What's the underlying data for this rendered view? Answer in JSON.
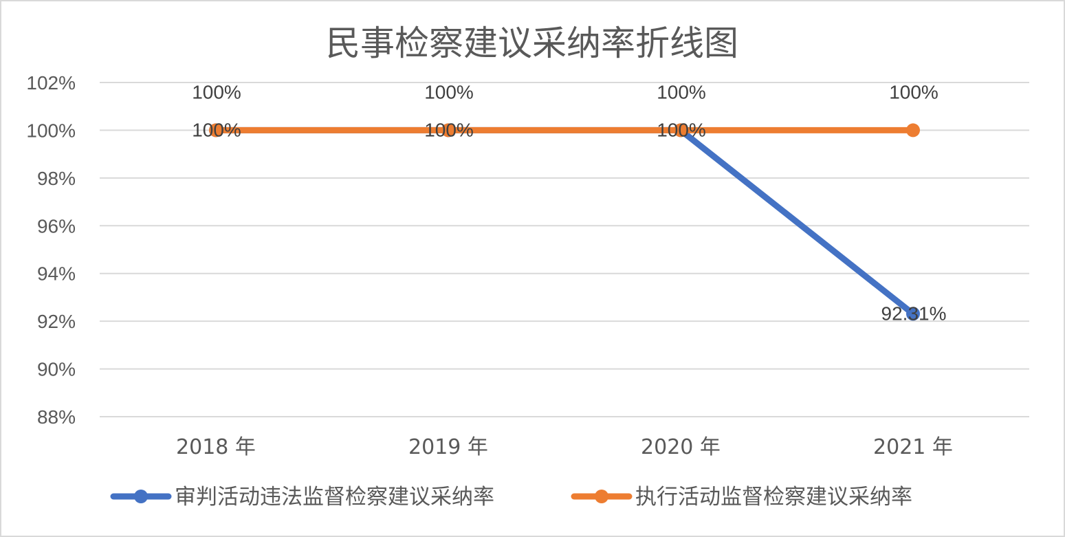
{
  "chart_data": {
    "type": "line",
    "title": "民事检察建议采纳率折线图",
    "categories": [
      "2018 年",
      "2019 年",
      "2020 年",
      "2021 年"
    ],
    "ylim": [
      88,
      102
    ],
    "yticks": [
      88,
      90,
      92,
      94,
      96,
      98,
      100,
      102
    ],
    "ytick_labels": [
      "88%",
      "90%",
      "92%",
      "94%",
      "96%",
      "98%",
      "100%",
      "102%"
    ],
    "y_unit": "%",
    "grid": true,
    "legend_position": "bottom",
    "series": [
      {
        "name": "审判活动违法监督检察建议采纳率",
        "values": [
          100,
          100,
          100,
          92.31
        ],
        "data_labels": [
          "100%",
          "100%",
          "100%",
          "92.31%"
        ],
        "color": "#4472c4"
      },
      {
        "name": "执行活动监督检察建议采纳率",
        "values": [
          100,
          100,
          100,
          100
        ],
        "data_labels": [
          "100%",
          "100%",
          "100%",
          "100%"
        ],
        "color": "#ed7d31"
      }
    ]
  }
}
